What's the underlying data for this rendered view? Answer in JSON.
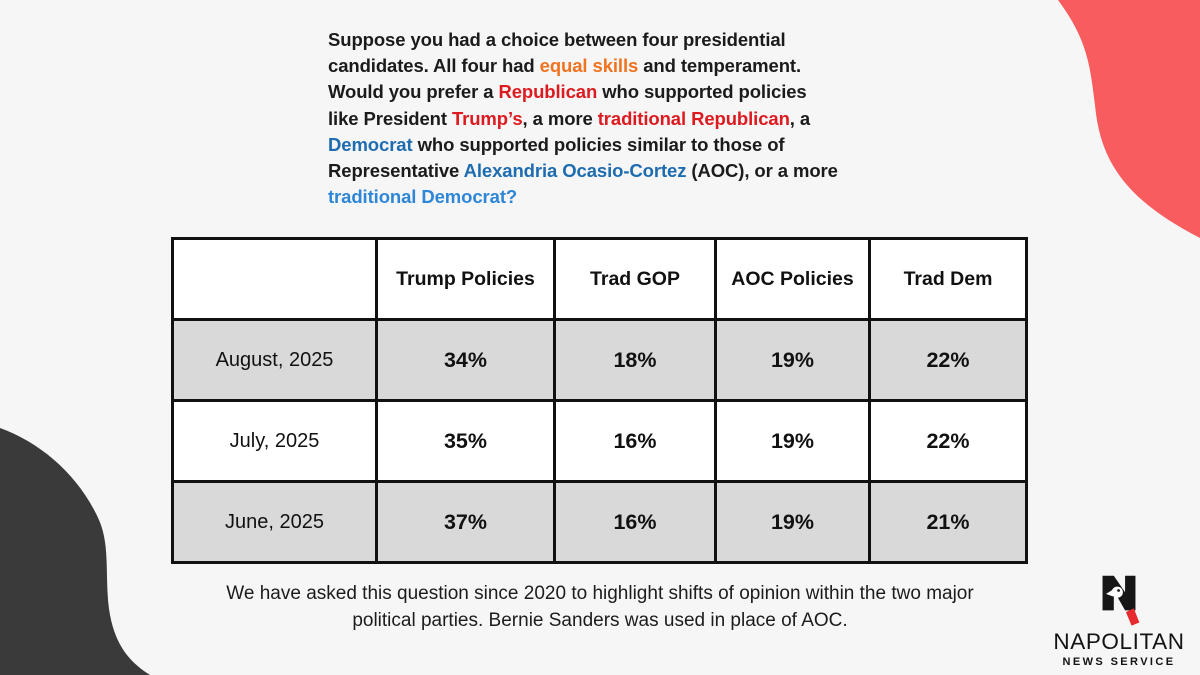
{
  "page": {
    "background": "#F7F6F7",
    "accent_red": "#F85C5E",
    "accent_dark": "#3A3A3A",
    "border_black": "#111111",
    "shaded_row_bg": "#D9D9D9"
  },
  "question": {
    "colors": {
      "black": "#1B1B1B",
      "orange": "#EF7320",
      "red": "#DC1A1F",
      "blue": "#1E6CB0",
      "lightblue": "#2E86D6"
    },
    "segments": [
      {
        "text": "Suppose you had a choice between four presidential",
        "color": "black",
        "break": true
      },
      {
        "text": "candidates. All four had ",
        "color": "black"
      },
      {
        "text": "equal skills",
        "color": "orange"
      },
      {
        "text": " and temperament.",
        "color": "black",
        "break": true
      },
      {
        "text": "Would you prefer a ",
        "color": "black"
      },
      {
        "text": "Republican",
        "color": "red"
      },
      {
        "text": " who supported policies",
        "color": "black",
        "break": true
      },
      {
        "text": "like President ",
        "color": "black"
      },
      {
        "text": "Trump’s",
        "color": "red"
      },
      {
        "text": ", a more ",
        "color": "black"
      },
      {
        "text": "traditional Republican",
        "color": "red"
      },
      {
        "text": ", a",
        "color": "black",
        "break": true
      },
      {
        "text": "Democrat",
        "color": "blue"
      },
      {
        "text": " who supported policies similar to those of",
        "color": "black",
        "break": true
      },
      {
        "text": "Representative ",
        "color": "black"
      },
      {
        "text": "Alexandria Ocasio-Cortez",
        "color": "blue"
      },
      {
        "text": " (AOC), or a more",
        "color": "black",
        "break": true
      },
      {
        "text": "traditional Democrat?",
        "color": "lightblue"
      }
    ]
  },
  "table": {
    "headers": [
      "",
      "Trump Policies",
      "Trad GOP",
      "AOC Policies",
      "Trad Dem"
    ],
    "rows": [
      {
        "label": "August, 2025",
        "values": [
          "34%",
          "18%",
          "19%",
          "22%"
        ]
      },
      {
        "label": "July, 2025",
        "values": [
          "35%",
          "16%",
          "19%",
          "22%"
        ]
      },
      {
        "label": "June, 2025",
        "values": [
          "37%",
          "16%",
          "19%",
          "21%"
        ]
      }
    ]
  },
  "chart_data": {
    "type": "table",
    "title": "Suppose you had a choice between four presidential candidates. All four had equal skills and temperament. Would you prefer a Republican who supported policies like President Trump’s, a more traditional Republican, a Democrat who supported policies similar to those of Representative Alexandria Ocasio-Cortez (AOC), or a more traditional Democrat?",
    "columns": [
      "Trump Policies",
      "Trad GOP",
      "AOC Policies",
      "Trad Dem"
    ],
    "categories": [
      "August, 2025",
      "July, 2025",
      "June, 2025"
    ],
    "series": [
      {
        "name": "August, 2025",
        "values": [
          34,
          18,
          19,
          22
        ]
      },
      {
        "name": "July, 2025",
        "values": [
          35,
          16,
          19,
          22
        ]
      },
      {
        "name": "June, 2025",
        "values": [
          37,
          16,
          19,
          21
        ]
      }
    ],
    "unit": "%"
  },
  "footnote": {
    "line1": "We have asked this question since 2020 to highlight shifts of opinion within the two major",
    "line2": "political parties. Bernie Sanders was used in place of AOC."
  },
  "logo": {
    "name": "NAPOLITAN",
    "tagline": "NEWS SERVICE"
  }
}
